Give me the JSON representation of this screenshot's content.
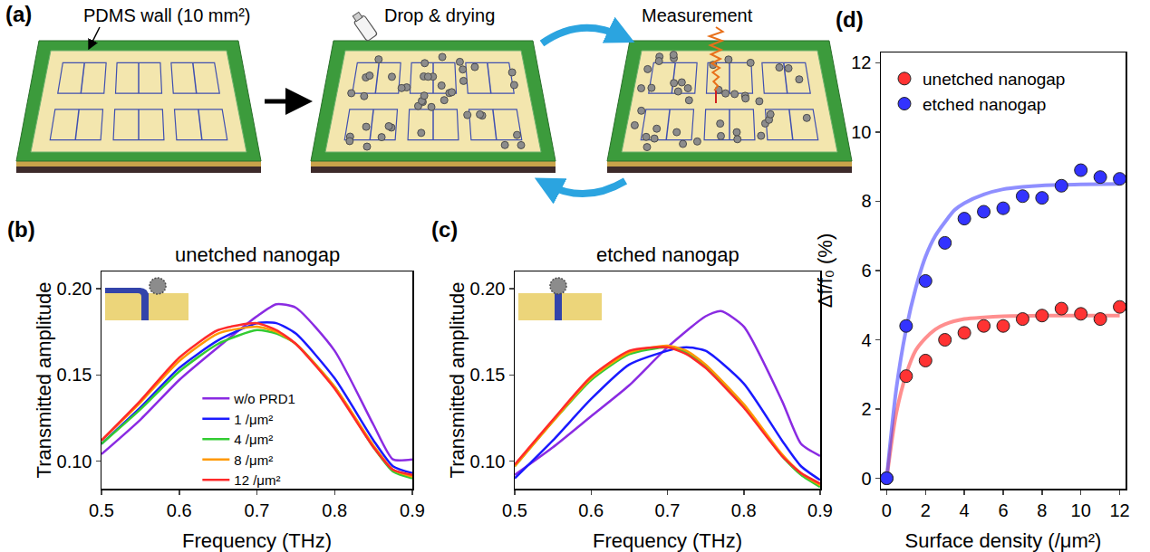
{
  "diagram": {
    "panel_label": "(a)",
    "steps": [
      "PDMS wall (10 mm²)",
      "Drop & drying",
      "Measurement"
    ]
  },
  "chart_data": [
    {
      "panel_label": "(b)",
      "type": "line",
      "title": "unetched nanogap",
      "x_label": "Frequency (THz)",
      "y_label": "Transmitted amplitude",
      "xlim": [
        0.5,
        0.9
      ],
      "xticks": [
        0.5,
        0.6,
        0.7,
        0.8,
        0.9
      ],
      "ylim": [
        0.084,
        0.21
      ],
      "yticks": [
        {
          "value": 0.1,
          "label": "0.10"
        },
        {
          "value": 0.15,
          "label": "0.15"
        },
        {
          "value": 0.2,
          "label": "0.20"
        }
      ],
      "grid": false,
      "legend": "bottom",
      "series": [
        {
          "name": "w/o PRD1",
          "color": "#8a2be2",
          "x": [
            0.5,
            0.55,
            0.6,
            0.65,
            0.7,
            0.725,
            0.75,
            0.8,
            0.85,
            0.875,
            0.9
          ],
          "values": [
            0.104,
            0.124,
            0.147,
            0.166,
            0.184,
            0.191,
            0.189,
            0.164,
            0.121,
            0.101,
            0.101
          ]
        },
        {
          "name": "1 /μm²",
          "color": "#1a1aff",
          "x": [
            0.5,
            0.55,
            0.6,
            0.65,
            0.7,
            0.725,
            0.75,
            0.8,
            0.85,
            0.875,
            0.9
          ],
          "values": [
            0.11,
            0.131,
            0.154,
            0.17,
            0.18,
            0.18,
            0.174,
            0.148,
            0.112,
            0.097,
            0.093
          ]
        },
        {
          "name": "4 /μm²",
          "color": "#33cc33",
          "x": [
            0.5,
            0.55,
            0.6,
            0.65,
            0.7,
            0.725,
            0.75,
            0.8,
            0.85,
            0.875,
            0.9
          ],
          "values": [
            0.11,
            0.13,
            0.152,
            0.168,
            0.176,
            0.174,
            0.168,
            0.143,
            0.108,
            0.094,
            0.09
          ]
        },
        {
          "name": "8 /μm²",
          "color": "#ff9900",
          "x": [
            0.5,
            0.55,
            0.6,
            0.65,
            0.7,
            0.725,
            0.75,
            0.8,
            0.85,
            0.875,
            0.9
          ],
          "values": [
            0.112,
            0.134,
            0.158,
            0.174,
            0.178,
            0.175,
            0.168,
            0.143,
            0.109,
            0.095,
            0.091
          ]
        },
        {
          "name": "12 /μm²",
          "color": "#ff2a2a",
          "x": [
            0.5,
            0.55,
            0.6,
            0.65,
            0.7,
            0.725,
            0.75,
            0.8,
            0.85,
            0.875,
            0.9
          ],
          "values": [
            0.112,
            0.135,
            0.16,
            0.176,
            0.18,
            0.176,
            0.168,
            0.142,
            0.108,
            0.095,
            0.092
          ]
        }
      ]
    },
    {
      "panel_label": "(c)",
      "type": "line",
      "title": "etched nanogap",
      "x_label": "Frequency (THz)",
      "y_label": "Transmitted amplitude",
      "xlim": [
        0.5,
        0.9
      ],
      "xticks": [
        0.5,
        0.6,
        0.7,
        0.8,
        0.9
      ],
      "ylim": [
        0.084,
        0.21
      ],
      "yticks": [
        {
          "value": 0.1,
          "label": "0.10"
        },
        {
          "value": 0.15,
          "label": "0.15"
        },
        {
          "value": 0.2,
          "label": "0.20"
        }
      ],
      "grid": false,
      "series": [
        {
          "color": "#8a2be2",
          "x": [
            0.5,
            0.55,
            0.6,
            0.65,
            0.7,
            0.75,
            0.77,
            0.8,
            0.85,
            0.875,
            0.9
          ],
          "values": [
            0.092,
            0.108,
            0.126,
            0.144,
            0.166,
            0.184,
            0.187,
            0.178,
            0.135,
            0.11,
            0.103
          ]
        },
        {
          "color": "#1a1aff",
          "x": [
            0.5,
            0.55,
            0.6,
            0.65,
            0.7,
            0.725,
            0.75,
            0.8,
            0.85,
            0.875,
            0.9
          ],
          "values": [
            0.09,
            0.112,
            0.136,
            0.156,
            0.164,
            0.166,
            0.164,
            0.145,
            0.112,
            0.097,
            0.089
          ]
        },
        {
          "color": "#33cc33",
          "x": [
            0.5,
            0.55,
            0.6,
            0.65,
            0.7,
            0.725,
            0.75,
            0.8,
            0.85,
            0.875,
            0.9
          ],
          "values": [
            0.097,
            0.123,
            0.147,
            0.162,
            0.166,
            0.163,
            0.155,
            0.132,
            0.103,
            0.092,
            0.085
          ]
        },
        {
          "color": "#ff9900",
          "x": [
            0.5,
            0.55,
            0.6,
            0.65,
            0.7,
            0.725,
            0.75,
            0.8,
            0.85,
            0.875,
            0.9
          ],
          "values": [
            0.097,
            0.123,
            0.148,
            0.163,
            0.167,
            0.164,
            0.156,
            0.133,
            0.104,
            0.093,
            0.086
          ]
        },
        {
          "color": "#ff2a2a",
          "x": [
            0.5,
            0.55,
            0.6,
            0.65,
            0.7,
            0.725,
            0.75,
            0.8,
            0.85,
            0.875,
            0.9
          ],
          "values": [
            0.098,
            0.124,
            0.149,
            0.164,
            0.166,
            0.162,
            0.154,
            0.131,
            0.103,
            0.093,
            0.087
          ]
        }
      ]
    },
    {
      "panel_label": "(d)",
      "type": "scatter",
      "x_label": "Surface density (/μm²)",
      "y_label": "Δf/f₀ (%)",
      "xlim": [
        -0.3,
        12.3
      ],
      "xticks": [
        0,
        2,
        4,
        6,
        8,
        10,
        12
      ],
      "ylim": [
        -0.3,
        12.3
      ],
      "yticks": [
        0,
        2,
        4,
        6,
        8,
        10,
        12
      ],
      "grid": false,
      "legend": "top left",
      "series": [
        {
          "name": "unetched nanogap",
          "color": "#ff3333",
          "marker": "circle",
          "x": [
            0,
            1,
            2,
            3,
            4,
            5,
            6,
            7,
            8,
            9,
            10,
            11,
            12
          ],
          "values": [
            0,
            2.95,
            3.4,
            4.0,
            4.2,
            4.4,
            4.4,
            4.6,
            4.7,
            4.9,
            4.75,
            4.6,
            4.95
          ],
          "fit_x": [
            0,
            0.5,
            1,
            1.5,
            2,
            2.5,
            3,
            4,
            5,
            6,
            8,
            12
          ],
          "fit": [
            0,
            1.9,
            3.0,
            3.7,
            4.05,
            4.3,
            4.45,
            4.6,
            4.65,
            4.68,
            4.7,
            4.7
          ]
        },
        {
          "name": "etched nanogap",
          "color": "#3333ff",
          "marker": "circle",
          "x": [
            0,
            1,
            2,
            3,
            4,
            5,
            6,
            7,
            8,
            9,
            10,
            11,
            12
          ],
          "values": [
            0,
            4.4,
            5.7,
            6.8,
            7.5,
            7.7,
            7.8,
            8.15,
            8.1,
            8.45,
            8.9,
            8.7,
            8.65
          ],
          "fit_x": [
            0,
            0.5,
            1,
            1.5,
            2,
            2.5,
            3,
            3.5,
            4,
            5,
            6,
            7,
            8,
            10,
            12
          ],
          "fit": [
            0,
            2.6,
            4.3,
            5.5,
            6.4,
            7.0,
            7.4,
            7.75,
            7.95,
            8.2,
            8.35,
            8.42,
            8.46,
            8.49,
            8.5
          ]
        }
      ]
    }
  ]
}
